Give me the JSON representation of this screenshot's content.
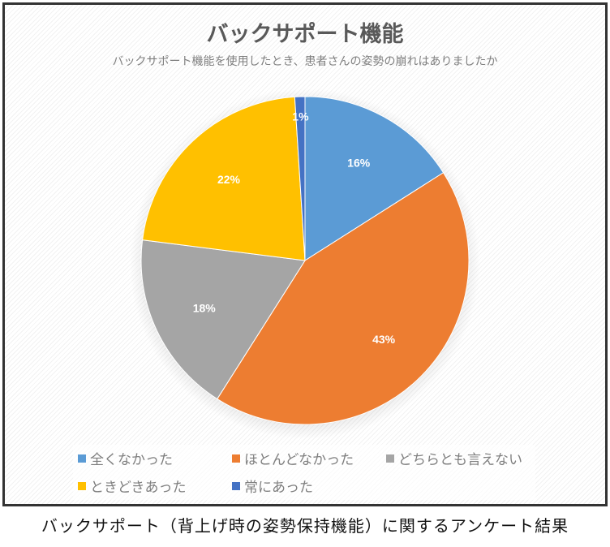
{
  "chart_data": {
    "type": "pie",
    "title": "バックサポート機能",
    "subtitle": "バックサポート機能を使用したとき、患者さんの姿勢の崩れはありましたか",
    "start_angle": "top, clockwise",
    "legend_position": "bottom",
    "slices": [
      {
        "label": "全くなかった",
        "value": 16,
        "data_label": "16%",
        "color": "#5B9BD5"
      },
      {
        "label": "ほとんどなかった",
        "value": 43,
        "data_label": "43%",
        "color": "#ED7D31"
      },
      {
        "label": "どちらとも言えない",
        "value": 18,
        "data_label": "18%",
        "color": "#A5A5A5"
      },
      {
        "label": "ときどきあった",
        "value": 22,
        "data_label": "22%",
        "color": "#FFC000"
      },
      {
        "label": "常にあった",
        "value": 1,
        "data_label": "1%",
        "color": "#4472C4"
      }
    ]
  },
  "caption": "バックサポート（背上げ時の姿勢保持機能）に関するアンケート結果"
}
